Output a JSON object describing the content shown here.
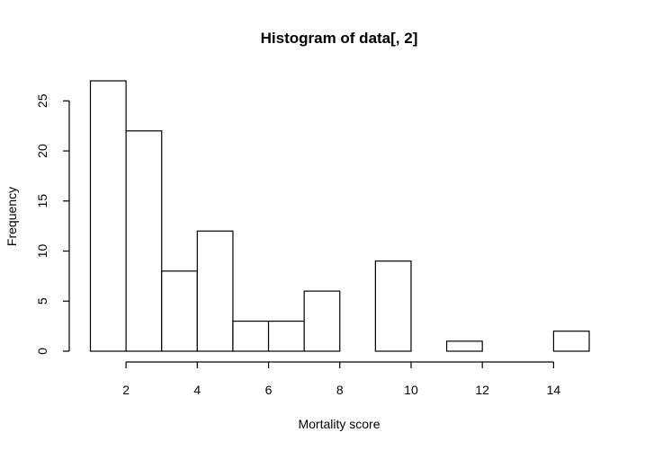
{
  "chart_data": {
    "type": "bar",
    "title": "Histogram of data[, 2]",
    "xlabel": "Mortality score",
    "ylabel": "Frequency",
    "bins": [
      {
        "x0": 1,
        "x1": 2,
        "count": 27
      },
      {
        "x0": 2,
        "x1": 3,
        "count": 22
      },
      {
        "x0": 3,
        "x1": 4,
        "count": 8
      },
      {
        "x0": 4,
        "x1": 5,
        "count": 12
      },
      {
        "x0": 5,
        "x1": 6,
        "count": 3
      },
      {
        "x0": 6,
        "x1": 7,
        "count": 3
      },
      {
        "x0": 7,
        "x1": 8,
        "count": 6
      },
      {
        "x0": 8,
        "x1": 9,
        "count": 0
      },
      {
        "x0": 9,
        "x1": 10,
        "count": 9
      },
      {
        "x0": 10,
        "x1": 11,
        "count": 0
      },
      {
        "x0": 11,
        "x1": 12,
        "count": 1
      },
      {
        "x0": 12,
        "x1": 13,
        "count": 0
      },
      {
        "x0": 13,
        "x1": 14,
        "count": 0
      },
      {
        "x0": 14,
        "x1": 15,
        "count": 2
      }
    ],
    "x_ticks": [
      "2",
      "4",
      "6",
      "8",
      "10",
      "12",
      "14"
    ],
    "y_ticks": [
      "0",
      "5",
      "10",
      "15",
      "20",
      "25"
    ],
    "xlim": [
      1,
      15
    ],
    "ylim": [
      0,
      27
    ],
    "grid": false,
    "legend": "none"
  }
}
